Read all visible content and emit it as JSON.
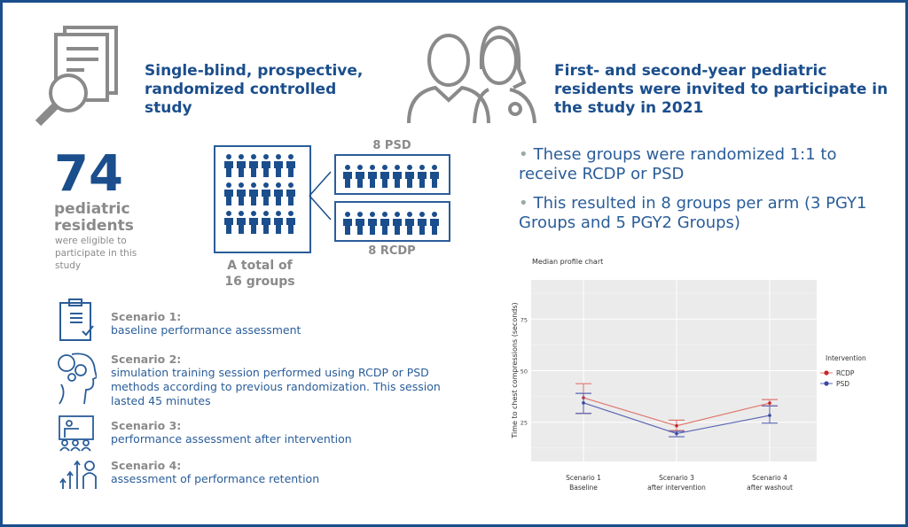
{
  "header_left": {
    "title": "Single-blind, prospective, randomized controlled study",
    "icon": "document-magnifier-icon"
  },
  "header_right": {
    "title": "First- and second-year pediatric residents were invited to participate in the study in 2021",
    "icon": "doctors-icon"
  },
  "stat": {
    "number": "74",
    "label": "pediatric residents",
    "sub": "were eligible to participate in this study"
  },
  "groups": {
    "total_label": "A total of 16 groups",
    "psd_label": "8 PSD",
    "rcdp_label": "8 RCDP"
  },
  "bullets": [
    "These groups were randomized 1:1 to receive RCDP or PSD",
    "This resulted in 8 groups per arm (3 PGY1 Groups and 5 PGY2 Groups)"
  ],
  "scenarios": [
    {
      "title": "Scenario 1:",
      "desc": "baseline performance assessment",
      "icon": "clipboard-check-icon"
    },
    {
      "title": "Scenario 2:",
      "desc": "simulation training session performed using RCDP or PSD methods according to previous randomization. This session lasted 45 minutes",
      "icon": "head-gears-icon"
    },
    {
      "title": "Scenario 3:",
      "desc": "performance assessment after intervention",
      "icon": "presentation-audience-icon"
    },
    {
      "title": "Scenario 4:",
      "desc": "assessment of performance retention",
      "icon": "growth-person-icon"
    }
  ],
  "colors": {
    "brand": "#1b4e8c",
    "rcdp": "#e0786e",
    "psd": "#5b64b3"
  },
  "chart_data": {
    "type": "line",
    "title": "Median profile chart",
    "ylabel": "Time to chest compressions (seconds)",
    "xlabel": "",
    "categories": [
      "Scenario 1\nBaseline",
      "Scenario 3\nafter intervention",
      "Scenario 4\nafter washout"
    ],
    "category_lines": [
      [
        "Scenario 1",
        "Baseline"
      ],
      [
        "Scenario 3",
        "after intervention"
      ],
      [
        "Scenario 4",
        "after washout"
      ]
    ],
    "yticks": [
      25,
      50,
      75
    ],
    "ylim": [
      6,
      94
    ],
    "grid": true,
    "legend": {
      "title": "Intervention",
      "placement": "right"
    },
    "series": [
      {
        "name": "RCDP",
        "values": [
          36.9,
          23.3,
          34.3
        ],
        "lower": [
          29.3,
          21,
          33
        ],
        "upper": [
          43.7,
          26,
          36
        ]
      },
      {
        "name": "PSD",
        "values": [
          34.4,
          19.5,
          28.3
        ],
        "lower": [
          29.3,
          18,
          24.6
        ],
        "upper": [
          39,
          20.6,
          32.9
        ]
      }
    ]
  }
}
